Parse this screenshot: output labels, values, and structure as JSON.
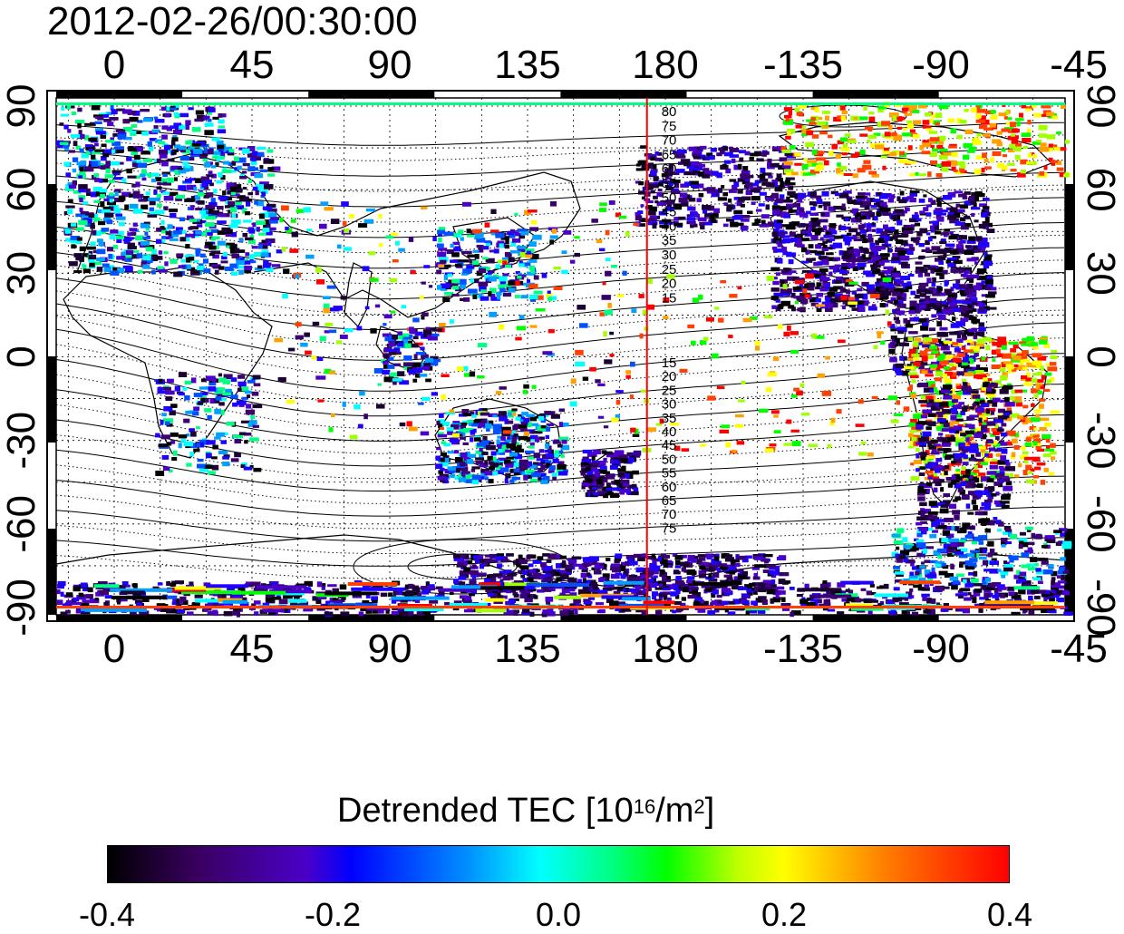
{
  "map": {
    "timestamp": "2012-02-26/00:30:00",
    "lon_ticks": [
      "0",
      "45",
      "90",
      "135",
      "180",
      "-135",
      "-90",
      "-45"
    ],
    "lon_values": [
      0,
      45,
      90,
      135,
      180,
      225,
      270,
      315
    ],
    "lat_ticks": [
      "90",
      "60",
      "30",
      "0",
      "-30",
      "-60",
      "-90"
    ],
    "lat_values": [
      90,
      60,
      30,
      0,
      -30,
      -60,
      -90
    ],
    "contour_labels_north": [
      "80",
      "75",
      "70",
      "65",
      "60",
      "55",
      "50",
      "45",
      "40",
      "35",
      "30",
      "25",
      "20",
      "15"
    ],
    "contour_labels_south": [
      "15",
      "20",
      "25",
      "30",
      "35",
      "40",
      "45",
      "50",
      "55",
      "60",
      "65",
      "70",
      "75"
    ],
    "contour_values_north": [
      80,
      75,
      70,
      65,
      60,
      55,
      50,
      45,
      40,
      35,
      30,
      25,
      20,
      15
    ],
    "contour_values_south": [
      15,
      20,
      25,
      30,
      35,
      40,
      45,
      50,
      55,
      60,
      65,
      70,
      75
    ],
    "marker_longitude": 174,
    "marker_color": "#ff0000",
    "projection": "equirectangular, longitude 0 at left-center",
    "grid": true
  },
  "colorbar": {
    "title_text": "Detrended TEC  [10",
    "title_exp": "16",
    "title_unit": "/m",
    "title_unit_exp": "2",
    "title_close": "]",
    "tick_labels": [
      "-0.4",
      "-0.2",
      "0.0",
      "0.2",
      "0.4"
    ],
    "tick_values": [
      -0.4,
      -0.2,
      0.0,
      0.2,
      0.4
    ],
    "min": -0.4,
    "max": 0.4,
    "colormap": [
      "#000000",
      "#4b00c8",
      "#0000ff",
      "#00ffff",
      "#00ff00",
      "#ffff00",
      "#ff8000",
      "#ff0000"
    ]
  }
}
